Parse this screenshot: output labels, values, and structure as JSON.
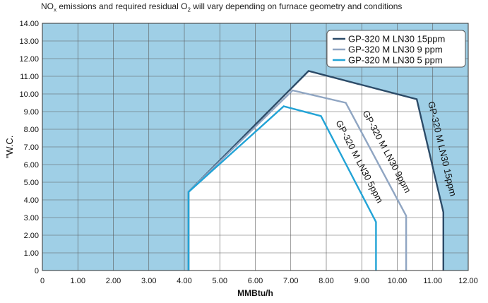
{
  "note": {
    "part1": "NO",
    "sub1": "x",
    "part2": " emissions and required residual O",
    "sub2": "2",
    "part3": " will vary depending on furnace geometry and conditions"
  },
  "chart_data": {
    "type": "line",
    "title": "",
    "xlabel": "MMBtu/h",
    "ylabel": "\"W.C.",
    "xlim": [
      0,
      12
    ],
    "ylim": [
      0,
      14
    ],
    "x_ticks": [
      "0",
      "1.00",
      "2.00",
      "3.00",
      "4.00",
      "5.00",
      "6.00",
      "7.00",
      "8.00",
      "9.00",
      "10.00",
      "11.00",
      "12.00"
    ],
    "y_ticks": [
      "0",
      "1.00",
      "2.00",
      "3.00",
      "4.00",
      "5.00",
      "6.00",
      "7.00",
      "8.00",
      "9.00",
      "10.00",
      "11.00",
      "12.00",
      "13.00",
      "14.00"
    ],
    "grid": true,
    "legend_position": "top-right",
    "colors": {
      "background_fill": "#9fcfe6",
      "operating_region_fill": "#ffffff",
      "grid": "#5a5a5a"
    },
    "series": [
      {
        "name": "GP-320 M LN30 15ppm",
        "color": "#2c4b68",
        "annotation": "GP-320 M LN30 15ppm",
        "points": [
          [
            4.12,
            0
          ],
          [
            4.12,
            4.45
          ],
          [
            7.5,
            11.3
          ],
          [
            10.55,
            9.7
          ],
          [
            11.3,
            3.3
          ],
          [
            11.3,
            0
          ]
        ]
      },
      {
        "name": "GP-320 M LN30 9 ppm",
        "color": "#8fa5c2",
        "annotation": "GP-320 M LN30 9ppm",
        "points": [
          [
            4.12,
            0
          ],
          [
            4.12,
            4.45
          ],
          [
            7.05,
            10.2
          ],
          [
            8.55,
            9.5
          ],
          [
            10.25,
            3.1
          ],
          [
            10.25,
            0
          ]
        ]
      },
      {
        "name": "GP-320 M LN30 5 ppm",
        "color": "#22a3d6",
        "annotation": "GP-320 M LN30 5ppm",
        "points": [
          [
            4.12,
            0
          ],
          [
            4.12,
            4.45
          ],
          [
            6.8,
            9.3
          ],
          [
            7.85,
            8.75
          ],
          [
            9.4,
            2.75
          ],
          [
            9.4,
            0
          ]
        ]
      }
    ]
  }
}
